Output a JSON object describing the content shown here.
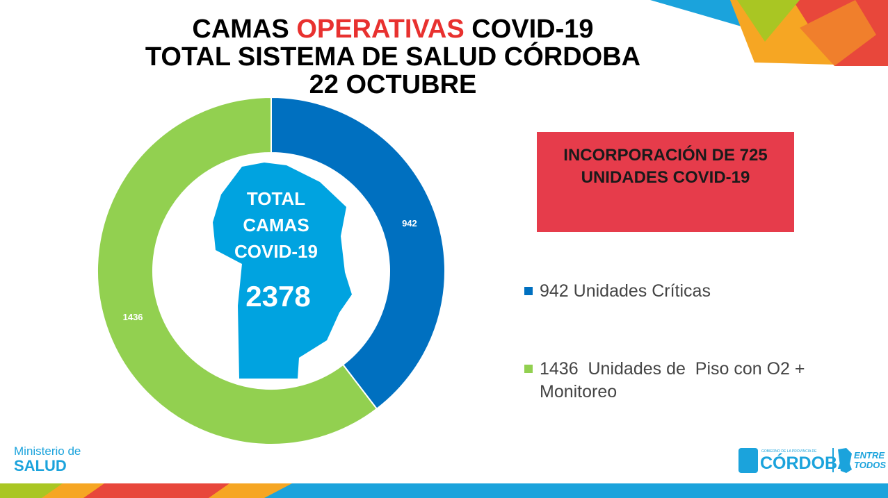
{
  "chart_data": {
    "type": "donut",
    "title": [
      [
        "CAMAS",
        "OPERATIVAS",
        "COVID-19"
      ],
      "TOTAL SISTEMA DE SALUD CÓRDOBA",
      "22 OCTUBRE"
    ],
    "center_text": [
      "TOTAL",
      "CAMAS",
      "COVID-19"
    ],
    "center_total": 2378,
    "categories": [
      "942 Unidades Críticas",
      "1436  Unidades de  Piso con O2 + Monitoreo"
    ],
    "values": [
      942,
      1436
    ],
    "colors": [
      "#0070c0",
      "#92d050"
    ],
    "highlight_color": "#e8312f",
    "callout": "INCORPORACIÓN DE 725 UNIDADES COVID-19"
  },
  "footer": {
    "ministry_line1": "Ministerio de",
    "ministry_line2": "SALUD",
    "gov_small": "GOBIERNO DE LA PROVINCIA DE",
    "gov_name": "CÓRDOBA",
    "slogan_line1": "ENTRE",
    "slogan_line2": "TODOS"
  }
}
